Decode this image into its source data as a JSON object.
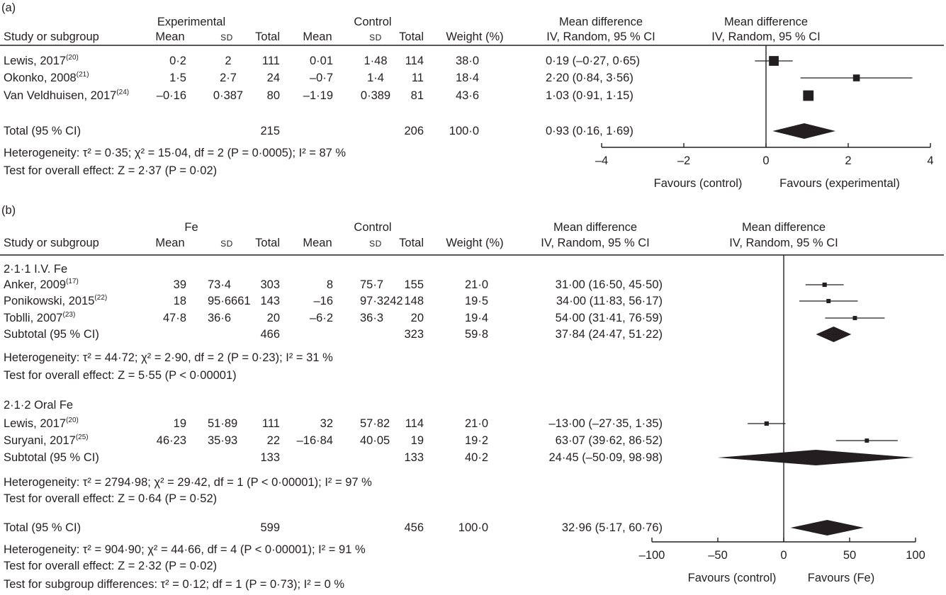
{
  "colors": {
    "ink": "#231f20"
  },
  "chart_data": [
    {
      "type": "forest",
      "panel_label": "(a)",
      "group_headers": {
        "experimental": "Experimental",
        "control": "Control",
        "md_table": "Mean difference",
        "md_plot": "Mean difference"
      },
      "column_headers": {
        "study": "Study or subgroup",
        "exp_mean": "Mean",
        "exp_sd": "SD",
        "exp_total": "Total",
        "ctrl_mean": "Mean",
        "ctrl_sd": "SD",
        "ctrl_total": "Total",
        "weight": "Weight (%)",
        "ci": "IV, Random, 95 % CI",
        "plot_ci": "IV, Random, 95 % CI"
      },
      "studies": [
        {
          "name": "Lewis, 2017",
          "ref": "(20)",
          "exp_mean": "0·2",
          "exp_sd": "2",
          "exp_total": "111",
          "ctrl_mean": "0·01",
          "ctrl_sd": "1·48",
          "ctrl_total": "114",
          "weight": "38·0",
          "ci_text": "0·19 (–0·27, 0·65)",
          "md": 0.19,
          "lo": -0.27,
          "hi": 0.65,
          "w": 38.0
        },
        {
          "name": "Okonko, 2008",
          "ref": "(21)",
          "exp_mean": "1·5",
          "exp_sd": "2·7",
          "exp_total": "24",
          "ctrl_mean": "–0·7",
          "ctrl_sd": "1·4",
          "ctrl_total": "11",
          "weight": "18·4",
          "ci_text": "2·20 (0·84, 3·56)",
          "md": 2.2,
          "lo": 0.84,
          "hi": 3.56,
          "w": 18.4
        },
        {
          "name": "Van Veldhuisen, 2017",
          "ref": "(24)",
          "exp_mean": "–0·16",
          "exp_sd": "0·387",
          "exp_total": "80",
          "ctrl_mean": "–1·19",
          "ctrl_sd": "0·389",
          "ctrl_total": "81",
          "weight": "43·6",
          "ci_text": "1·03 (0·91, 1·15)",
          "md": 1.03,
          "lo": 0.91,
          "hi": 1.15,
          "w": 43.6
        }
      ],
      "total": {
        "label": "Total (95 % CI)",
        "exp_total": "215",
        "ctrl_total": "206",
        "weight": "100·0",
        "ci_text": "0·93 (0·16, 1·69)",
        "md": 0.93,
        "lo": 0.16,
        "hi": 1.69
      },
      "notes": [
        "Heterogeneity: τ² = 0·35; χ² = 15·04, df = 2 (P = 0·0005); I² = 87 %",
        "Test for overall effect: Z = 2·37 (P = 0·02)"
      ],
      "xlim": [
        -4,
        4
      ],
      "xticks": [
        -4,
        -2,
        0,
        2,
        4
      ],
      "xtick_labels": [
        "–4",
        "–2",
        "0",
        "2",
        "4"
      ],
      "favours_left": "Favours (control)",
      "favours_right": "Favours (experimental)"
    },
    {
      "type": "forest",
      "panel_label": "(b)",
      "group_headers": {
        "experimental": "Fe",
        "control": "Control",
        "md_table": "Mean difference",
        "md_plot": "Mean difference"
      },
      "column_headers": {
        "study": "Study or subgroup",
        "exp_mean": "Mean",
        "exp_sd": "SD",
        "exp_total": "Total",
        "ctrl_mean": "Mean",
        "ctrl_sd": "SD",
        "ctrl_total": "Total",
        "weight": "Weight (%)",
        "ci": "IV, Random, 95 % CI",
        "plot_ci": "IV, Random, 95 % CI"
      },
      "subgroups": [
        {
          "title": "2·1·1 I.V. Fe",
          "studies": [
            {
              "name": "Anker, 2009",
              "ref": "(17)",
              "exp_mean": "39",
              "exp_sd": "73·4",
              "exp_total": "303",
              "ctrl_mean": "8",
              "ctrl_sd": "75·7",
              "ctrl_total": "155",
              "weight": "21·0",
              "ci_text": "31·00 (16·50, 45·50)",
              "md": 31.0,
              "lo": 16.5,
              "hi": 45.5,
              "w": 21.0
            },
            {
              "name": "Ponikowski, 2015",
              "ref": "(22)",
              "exp_mean": "18",
              "exp_sd": "95·6661",
              "exp_total": "143",
              "ctrl_mean": "–16",
              "ctrl_sd": "97·3242",
              "ctrl_total": "148",
              "weight": "19·5",
              "ci_text": "34·00 (11·83, 56·17)",
              "md": 34.0,
              "lo": 11.83,
              "hi": 56.17,
              "w": 19.5
            },
            {
              "name": "Toblli, 2007",
              "ref": "(23)",
              "exp_mean": "47·8",
              "exp_sd": "36·6",
              "exp_total": "20",
              "ctrl_mean": "–6·2",
              "ctrl_sd": "36·3",
              "ctrl_total": "20",
              "weight": "19·4",
              "ci_text": "54·00 (31·41, 76·59)",
              "md": 54.0,
              "lo": 31.41,
              "hi": 76.59,
              "w": 19.4
            }
          ],
          "subtotal": {
            "label": "Subtotal (95 % CI)",
            "exp_total": "466",
            "ctrl_total": "323",
            "weight": "59·8",
            "ci_text": "37·84 (24·47, 51·22)",
            "md": 37.84,
            "lo": 24.47,
            "hi": 51.22
          },
          "notes": [
            "Heterogeneity: τ² = 44·72; χ² = 2·90, df = 2 (P = 0·23); I² = 31 %",
            "Test for overall effect: Z = 5·55 (P < 0·00001)"
          ]
        },
        {
          "title": "2·1·2 Oral Fe",
          "studies": [
            {
              "name": "Lewis, 2017",
              "ref": "(20)",
              "exp_mean": "19",
              "exp_sd": "51·89",
              "exp_total": "111",
              "ctrl_mean": "32",
              "ctrl_sd": "57·82",
              "ctrl_total": "114",
              "weight": "21·0",
              "ci_text": "–13·00 (–27·35, 1·35)",
              "md": -13.0,
              "lo": -27.35,
              "hi": 1.35,
              "w": 21.0
            },
            {
              "name": "Suryani, 2017",
              "ref": "(25)",
              "exp_mean": "46·23",
              "exp_sd": "35·93",
              "exp_total": "22",
              "ctrl_mean": "–16·84",
              "ctrl_sd": "40·05",
              "ctrl_total": "19",
              "weight": "19·2",
              "ci_text": "63·07 (39·62, 86·52)",
              "md": 63.07,
              "lo": 39.62,
              "hi": 86.52,
              "w": 19.2
            }
          ],
          "subtotal": {
            "label": "Subtotal (95 % CI)",
            "exp_total": "133",
            "ctrl_total": "133",
            "weight": "40·2",
            "ci_text": "24·45 (–50·09, 98·98)",
            "md": 24.45,
            "lo": -50.09,
            "hi": 98.98
          },
          "notes": [
            "Heterogeneity: τ² = 2794·98; χ² = 29·42, df = 1 (P < 0·00001); I² = 97 %",
            "Test for overall effect: Z = 0·64 (P = 0·52)"
          ]
        }
      ],
      "total": {
        "label": "Total (95 % CI)",
        "exp_total": "599",
        "ctrl_total": "456",
        "weight": "100·0",
        "ci_text": "32·96 (5·17, 60·76)",
        "md": 32.96,
        "lo": 5.17,
        "hi": 60.76
      },
      "notes": [
        "Heterogeneity: τ² = 904·90; χ² = 44·66, df = 4 (P < 0·00001); I² = 91 %",
        "Test for overall effect: Z = 2·32 (P = 0·02)",
        "Test for subgroup differences: τ² = 0·12; df = 1 (P = 0·73); I² = 0 %"
      ],
      "xlim": [
        -100,
        100
      ],
      "xticks": [
        -100,
        -50,
        0,
        50,
        100
      ],
      "xtick_labels": [
        "–100",
        "–50",
        "0",
        "50",
        "100"
      ],
      "favours_left": "Favours (control)",
      "favours_right": "Favours (Fe)"
    }
  ]
}
